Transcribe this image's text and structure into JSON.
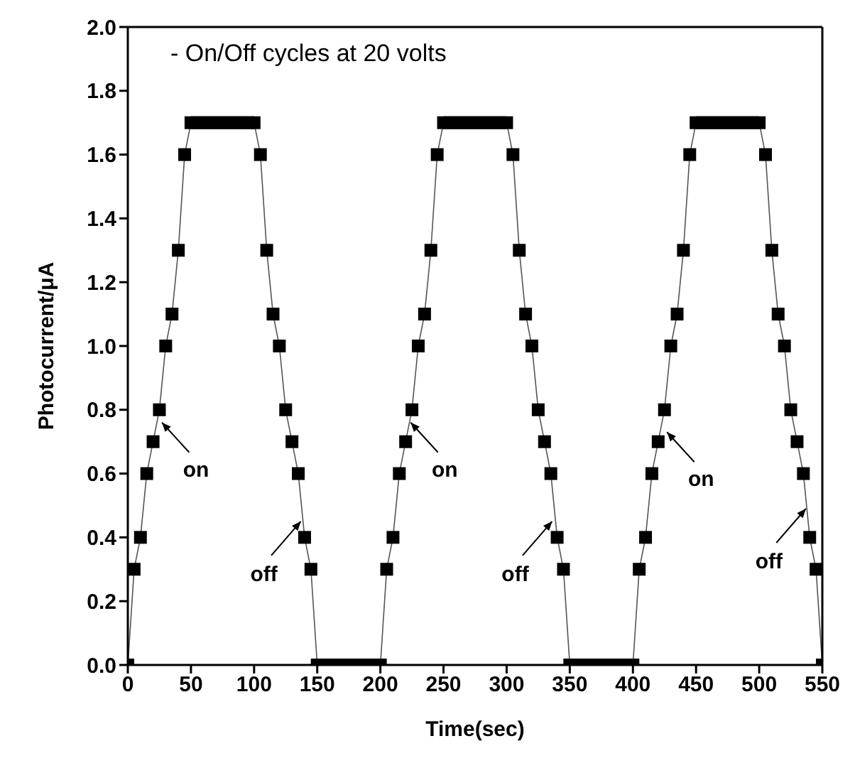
{
  "chart_data": {
    "type": "line",
    "xlabel": "Time(sec)",
    "ylabel": "Photocurrent/μA",
    "x": [
      0,
      5,
      10,
      15,
      20,
      25,
      30,
      35,
      40,
      45,
      50,
      55,
      60,
      65,
      70,
      75,
      80,
      85,
      90,
      95,
      100,
      105,
      110,
      115,
      120,
      125,
      130,
      135,
      140,
      145,
      150,
      155,
      160,
      165,
      170,
      175,
      180,
      185,
      190,
      195,
      200,
      205,
      210,
      215,
      220,
      225,
      230,
      235,
      240,
      245,
      250,
      255,
      260,
      265,
      270,
      275,
      280,
      285,
      290,
      295,
      300,
      305,
      310,
      315,
      320,
      325,
      330,
      335,
      340,
      345,
      350,
      355,
      360,
      365,
      370,
      375,
      380,
      385,
      390,
      395,
      400,
      405,
      410,
      415,
      420,
      425,
      430,
      435,
      440,
      445,
      450,
      455,
      460,
      465,
      470,
      475,
      480,
      485,
      490,
      495,
      500,
      505,
      510,
      515,
      520,
      525,
      530,
      535,
      540,
      545,
      550
    ],
    "series": [
      {
        "color": "#000000",
        "values": [
          0,
          0.3,
          0.4,
          0.6,
          0.7,
          0.8,
          1.0,
          1.1,
          1.3,
          1.6,
          1.7,
          1.7,
          1.7,
          1.7,
          1.7,
          1.7,
          1.7,
          1.7,
          1.7,
          1.7,
          1.7,
          1.6,
          1.3,
          1.1,
          1.0,
          0.8,
          0.7,
          0.6,
          0.4,
          0.3,
          0,
          0,
          0,
          0,
          0,
          0,
          0,
          0,
          0,
          0,
          0,
          0.3,
          0.4,
          0.6,
          0.7,
          0.8,
          1.0,
          1.1,
          1.3,
          1.6,
          1.7,
          1.7,
          1.7,
          1.7,
          1.7,
          1.7,
          1.7,
          1.7,
          1.7,
          1.7,
          1.7,
          1.6,
          1.3,
          1.1,
          1.0,
          0.8,
          0.7,
          0.6,
          0.4,
          0.3,
          0,
          0,
          0,
          0,
          0,
          0,
          0,
          0,
          0,
          0,
          0,
          0.3,
          0.4,
          0.6,
          0.7,
          0.8,
          1.0,
          1.1,
          1.3,
          1.6,
          1.7,
          1.7,
          1.7,
          1.7,
          1.7,
          1.7,
          1.7,
          1.7,
          1.7,
          1.7,
          1.7,
          1.6,
          1.3,
          1.1,
          1.0,
          0.8,
          0.7,
          0.6,
          0.4,
          0.3,
          0
        ]
      }
    ],
    "xlim": [
      0,
      550
    ],
    "xticks": [
      0,
      50,
      100,
      150,
      200,
      250,
      300,
      350,
      400,
      450,
      500,
      550
    ],
    "ylim": [
      0,
      2.0
    ],
    "yticks": [
      {
        "value": 0,
        "label": "0.0"
      },
      {
        "value": 0.2,
        "label": "0.2"
      },
      {
        "value": 0.4,
        "label": "0.4"
      },
      {
        "value": 0.6,
        "label": "0.6"
      },
      {
        "value": 0.8,
        "label": "0.8"
      },
      {
        "value": 1.0,
        "label": "1.0"
      },
      {
        "value": 1.2,
        "label": "1.2"
      },
      {
        "value": 1.4,
        "label": "1.4"
      },
      {
        "value": 1.6,
        "label": "1.6"
      },
      {
        "value": 1.8,
        "label": "1.8"
      },
      {
        "value": 2.0,
        "label": "2.0"
      }
    ],
    "marker": "square",
    "line_style": "solid",
    "grid": false,
    "legend": false,
    "annotations": [
      "- On/Off cycles at 20 volts",
      {
        "text": "on",
        "x": 27,
        "y": 0.76
      },
      {
        "text": "off",
        "x": 137,
        "y": 0.45
      },
      {
        "text": "on",
        "x": 224,
        "y": 0.76
      },
      {
        "text": "off",
        "x": 336,
        "y": 0.45
      },
      {
        "text": "on",
        "x": 427,
        "y": 0.73
      },
      {
        "text": "off",
        "x": 537,
        "y": 0.49
      }
    ]
  }
}
